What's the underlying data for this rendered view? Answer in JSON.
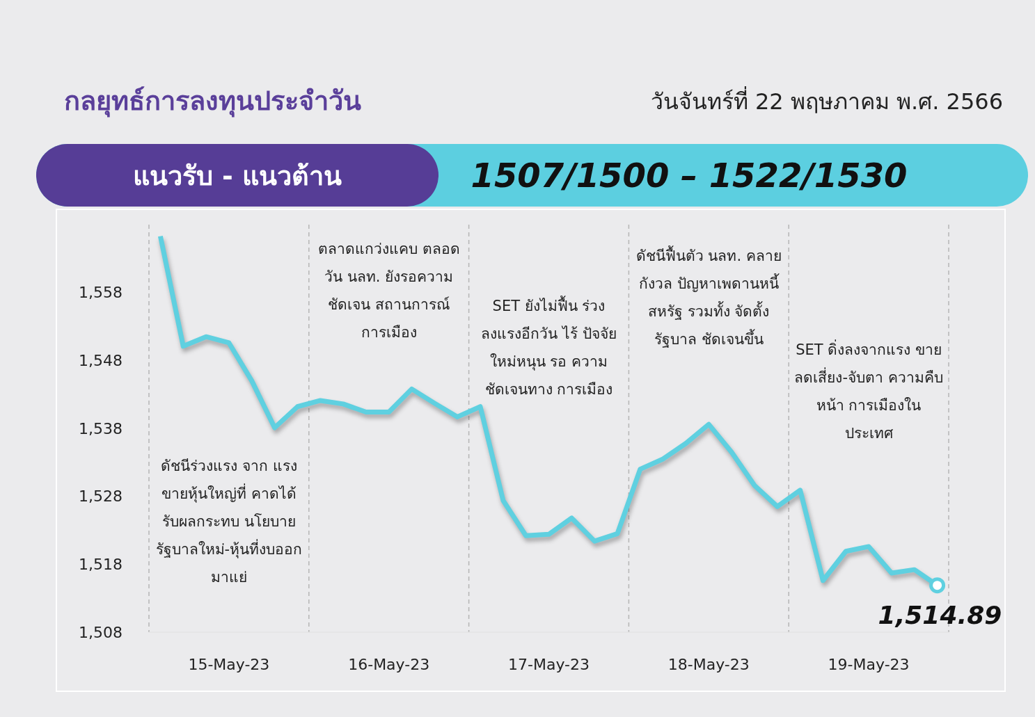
{
  "chart_data": {
    "type": "line",
    "title": "กลยุทธ์การลงทุนประจำวัน",
    "subtitle": "วันจันทร์ที่ 22 พฤษภาคม พ.ศ. 2566",
    "annotations": [
      "แนวรับ - แนวต้าน",
      "1507/1500 – 1522/1530",
      "ดัชนีร่วงแรง จาก แรงขายหุ้นใหญ่ที่ คาดได้รับผลกระทบ นโยบายรัฐบาลใหม่-หุ้นที่งบออกมาแย่",
      "ตลาดแกว่งแคบ ตลอดวัน นลท. ยังรอความชัดเจน สถานการณ์ การเมือง",
      "SET ยังไม่ฟื้น ร่วง ลงแรงอีกวัน ไร้ ปัจจัยใหม่หนุน รอ ความชัดเจนทาง การเมือง",
      "ดัชนีฟื้นตัว นลท. คลายกังวล ปัญหาเพดานหนี้ สหรัฐ รวมทั้ง จัดตั้งรัฐบาล ชัดเจนขึ้น",
      "SET ดิ่งลงจากแรง ขายลดเสี่ยง-จับตา ความคืบหน้า การเมืองในประเทศ",
      {
        "text": "1,514.89",
        "y": 1514.89
      }
    ],
    "categories": [
      null,
      null,
      null,
      "15-May-23",
      null,
      null,
      null,
      null,
      null,
      null,
      "16-May-23",
      null,
      null,
      null,
      null,
      null,
      null,
      "17-May-23",
      null,
      null,
      null,
      null,
      null,
      null,
      "18-May-23",
      null,
      null,
      null,
      null,
      null,
      null,
      "19-May-23",
      null,
      null,
      null
    ],
    "values": [
      1566.3,
      1550.1,
      1551.5,
      1550.6,
      1545.0,
      1538.1,
      1541.2,
      1542.1,
      1541.6,
      1540.4,
      1540.4,
      1543.8,
      1541.7,
      1539.7,
      1541.2,
      1527.4,
      1522.2,
      1522.4,
      1524.8,
      1521.4,
      1522.5,
      1532.0,
      1533.5,
      1535.8,
      1538.6,
      1534.5,
      1529.6,
      1526.5,
      1528.9,
      1515.6,
      1519.9,
      1520.6,
      1516.7,
      1517.2,
      1514.89
    ],
    "color": "#5fd0e0",
    "ylim": [
      1508,
      1568
    ],
    "yticks": [
      {
        "value": 1508,
        "label": "1,508"
      },
      {
        "value": 1518,
        "label": "1,518"
      },
      {
        "value": 1528,
        "label": "1,528"
      },
      {
        "value": 1538,
        "label": "1,538"
      },
      {
        "value": 1548,
        "label": "1,548"
      },
      {
        "value": 1558,
        "label": "1,558"
      }
    ],
    "grid": "x",
    "marker": "none",
    "line_style": "solid"
  }
}
